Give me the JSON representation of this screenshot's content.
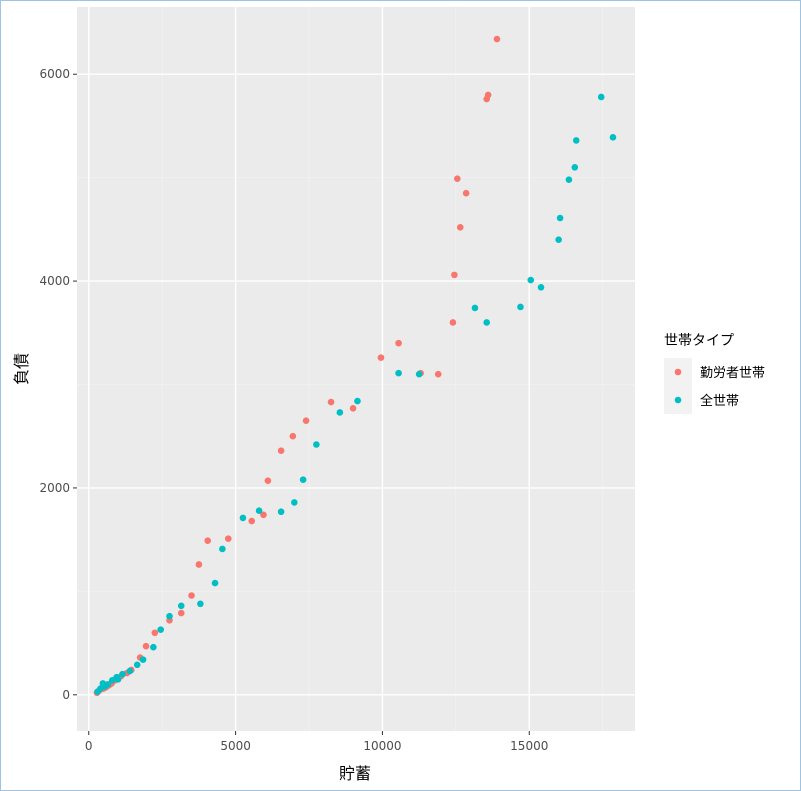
{
  "chart_data": {
    "type": "scatter",
    "title": "",
    "xlabel": "貯蓄",
    "ylabel": "負債",
    "xlim": [
      -400,
      18600
    ],
    "ylim": [
      -350,
      6650
    ],
    "xticks": [
      0,
      5000,
      10000,
      15000
    ],
    "yticks": [
      0,
      2000,
      4000,
      6000
    ],
    "tick_labels_x": [
      "0",
      "5000",
      "10000",
      "15000"
    ],
    "tick_labels_y": [
      "0",
      "2000",
      "4000",
      "6000"
    ],
    "grid": true,
    "legend": {
      "title": "世帯タイプ",
      "position": "right"
    },
    "series": [
      {
        "name": "勤労者世帯",
        "color": "#F8766D",
        "points": [
          [
            280,
            20
          ],
          [
            350,
            40
          ],
          [
            420,
            55
          ],
          [
            500,
            60
          ],
          [
            560,
            70
          ],
          [
            620,
            80
          ],
          [
            700,
            95
          ],
          [
            780,
            110
          ],
          [
            900,
            140
          ],
          [
            1100,
            180
          ],
          [
            1300,
            210
          ],
          [
            1450,
            240
          ],
          [
            1750,
            360
          ],
          [
            1950,
            470
          ],
          [
            2250,
            600
          ],
          [
            2750,
            720
          ],
          [
            3150,
            790
          ],
          [
            3500,
            960
          ],
          [
            3750,
            1260
          ],
          [
            4050,
            1490
          ],
          [
            4750,
            1510
          ],
          [
            5550,
            1680
          ],
          [
            5950,
            1740
          ],
          [
            6100,
            2070
          ],
          [
            6550,
            2360
          ],
          [
            6950,
            2500
          ],
          [
            7400,
            2650
          ],
          [
            8250,
            2830
          ],
          [
            9000,
            2770
          ],
          [
            9950,
            3260
          ],
          [
            10550,
            3400
          ],
          [
            11300,
            3110
          ],
          [
            11900,
            3100
          ],
          [
            12400,
            3600
          ],
          [
            12450,
            4060
          ],
          [
            12550,
            4990
          ],
          [
            12650,
            4520
          ],
          [
            12850,
            4850
          ],
          [
            13550,
            5760
          ],
          [
            13600,
            5800
          ],
          [
            13900,
            6340
          ]
        ]
      },
      {
        "name": "全世帯",
        "color": "#00BFC4",
        "points": [
          [
            300,
            30
          ],
          [
            400,
            60
          ],
          [
            480,
            110
          ],
          [
            550,
            80
          ],
          [
            650,
            100
          ],
          [
            800,
            140
          ],
          [
            950,
            170
          ],
          [
            1000,
            150
          ],
          [
            1150,
            200
          ],
          [
            1400,
            230
          ],
          [
            1650,
            290
          ],
          [
            1850,
            340
          ],
          [
            2200,
            460
          ],
          [
            2450,
            630
          ],
          [
            2750,
            760
          ],
          [
            3150,
            860
          ],
          [
            3800,
            880
          ],
          [
            4300,
            1080
          ],
          [
            4550,
            1410
          ],
          [
            5250,
            1710
          ],
          [
            5800,
            1780
          ],
          [
            6550,
            1770
          ],
          [
            7000,
            1860
          ],
          [
            7300,
            2080
          ],
          [
            7750,
            2420
          ],
          [
            8550,
            2730
          ],
          [
            9150,
            2840
          ],
          [
            10550,
            3110
          ],
          [
            11250,
            3100
          ],
          [
            13150,
            3740
          ],
          [
            13550,
            3600
          ],
          [
            14700,
            3750
          ],
          [
            15050,
            4010
          ],
          [
            15400,
            3940
          ],
          [
            16000,
            4400
          ],
          [
            16050,
            4610
          ],
          [
            16350,
            4980
          ],
          [
            16550,
            5100
          ],
          [
            16600,
            5360
          ],
          [
            17450,
            5780
          ],
          [
            17850,
            5390
          ]
        ]
      }
    ]
  }
}
